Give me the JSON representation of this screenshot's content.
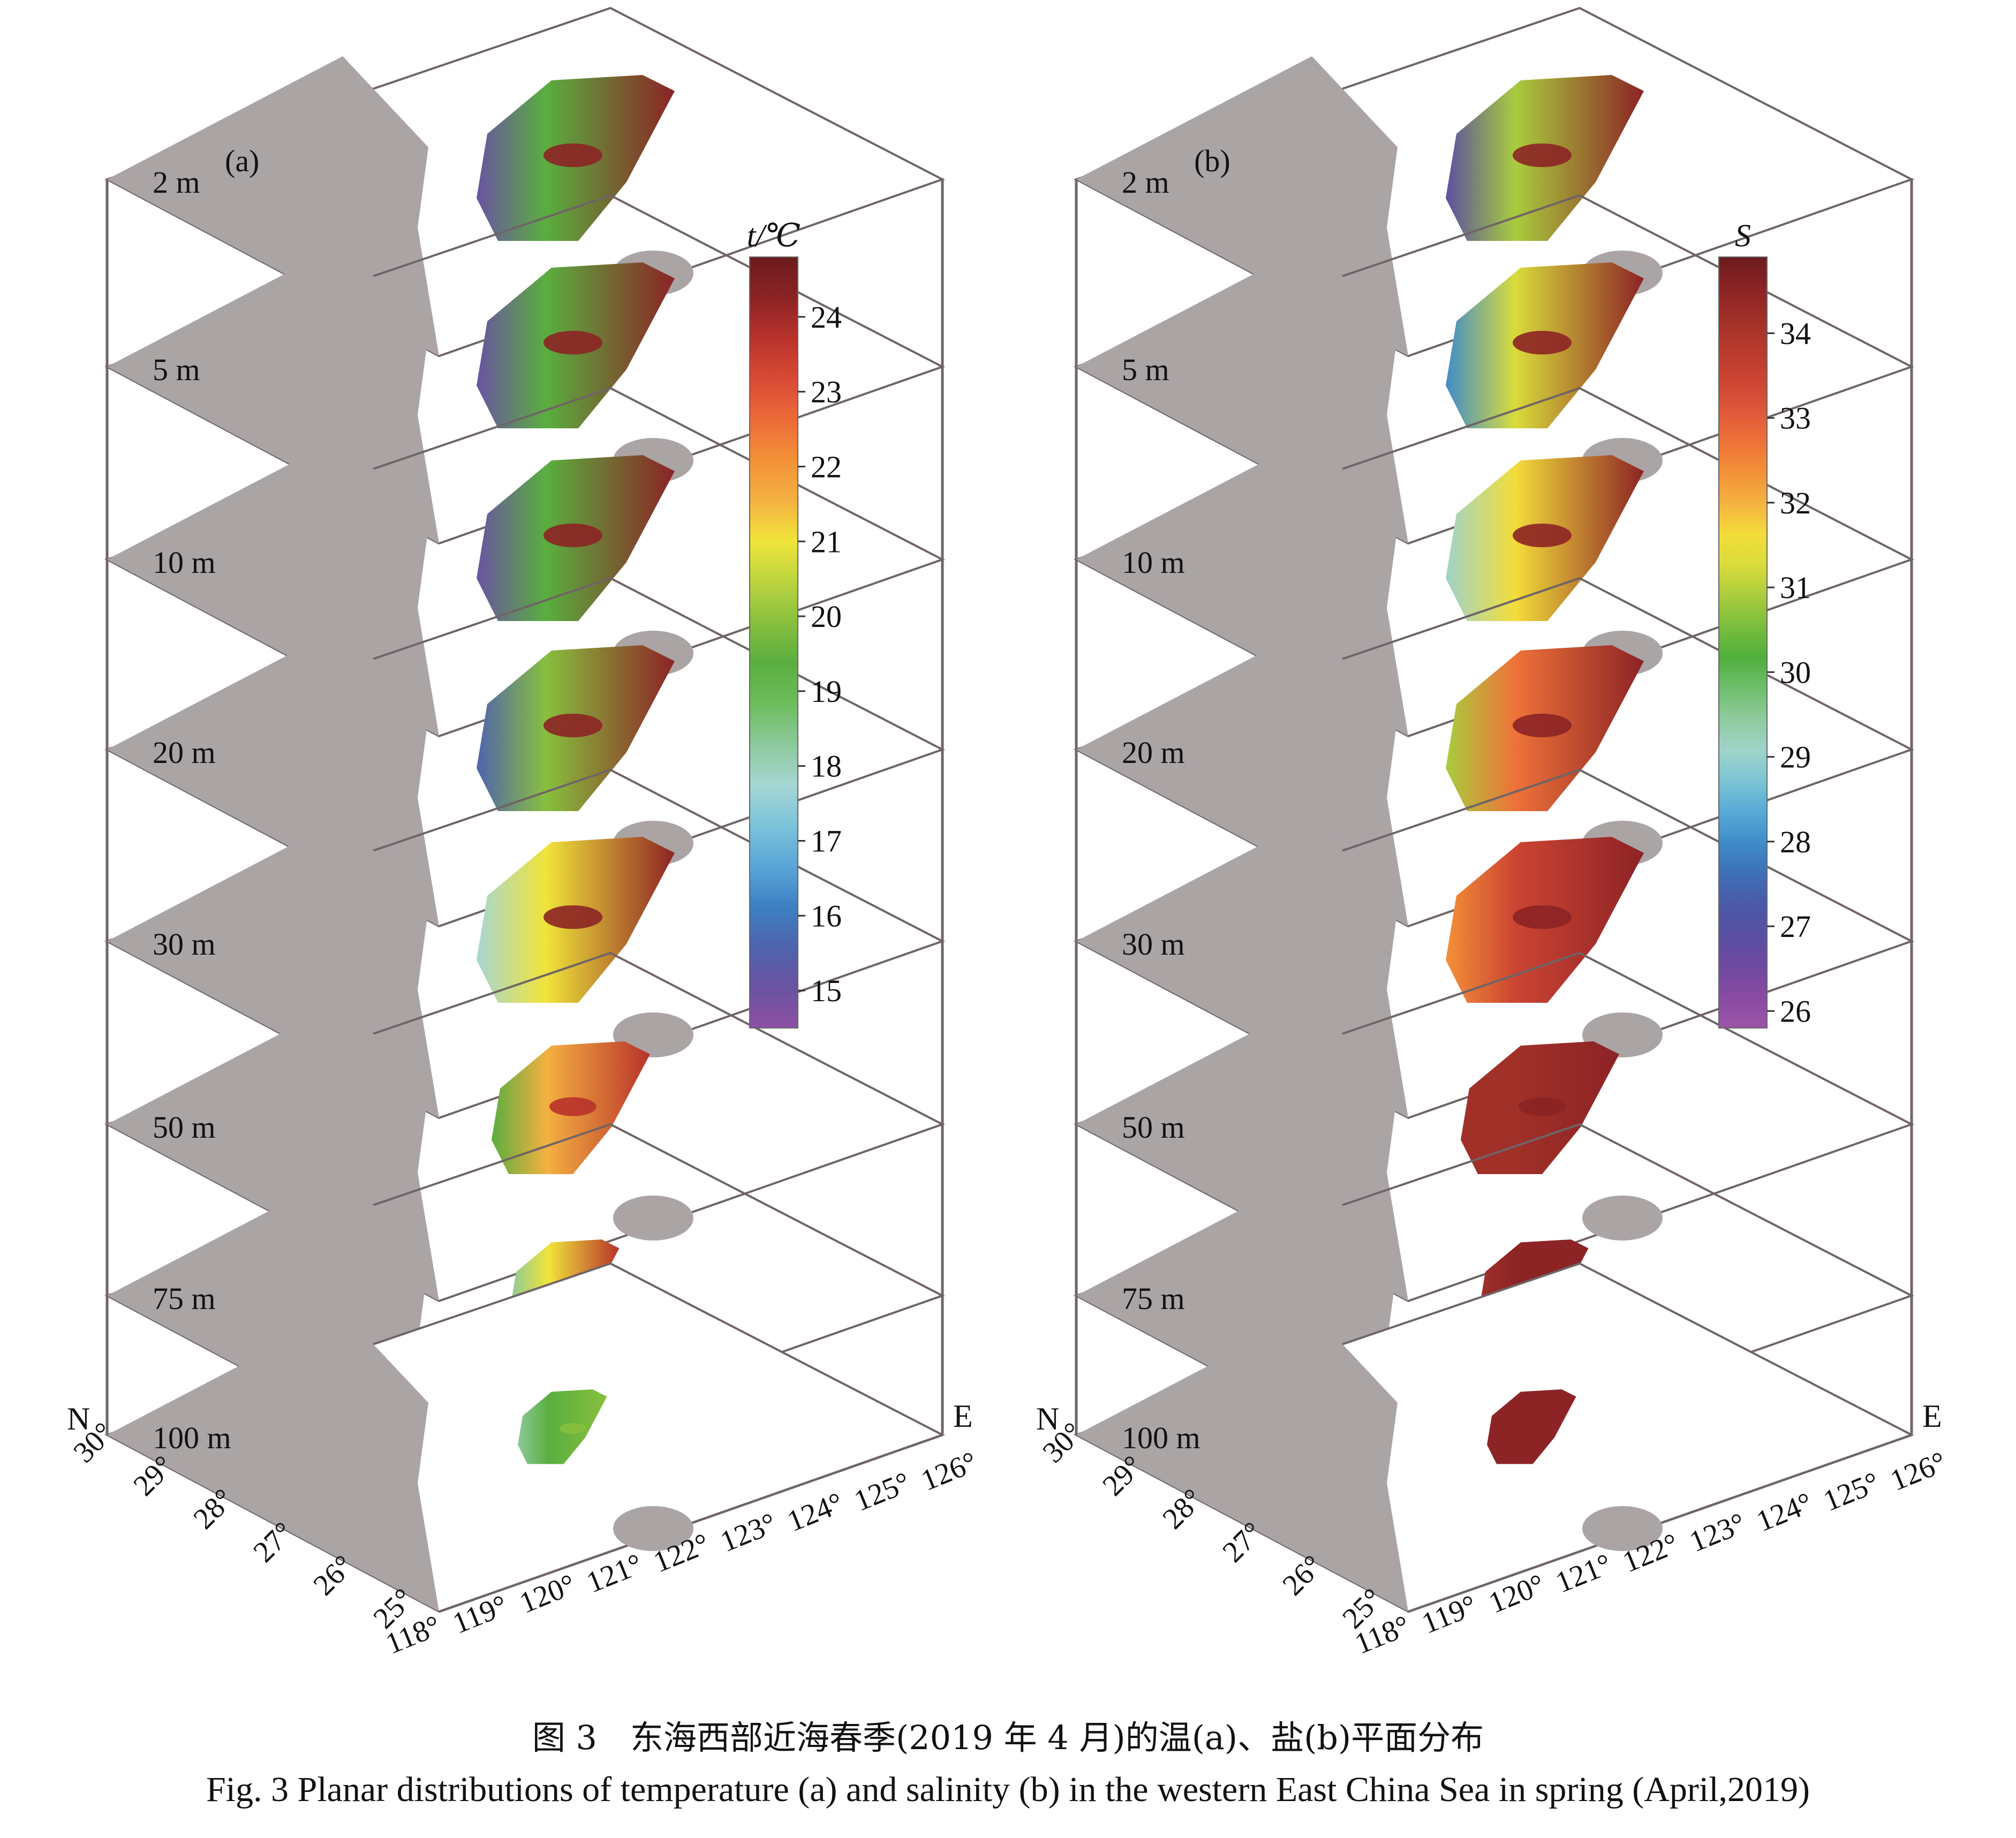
{
  "figure": {
    "caption_cn": "图 3　东海西部近海春季(2019 年 4 月)的温(a)、盐(b)平面分布",
    "caption_en": "Fig. 3  Planar distributions of temperature (a) and salinity (b) in the western East China Sea in spring (April,2019)"
  },
  "chart_data": [
    {
      "type": "heatmap",
      "panel": "(a)",
      "colorbar_title": "t/℃",
      "colorbar_ticks": [
        24,
        23,
        22,
        21,
        20,
        19,
        18,
        17,
        16,
        15
      ],
      "colorbar_range": [
        14.5,
        24.8
      ],
      "depth_labels": [
        "2 m",
        "5 m",
        "10 m",
        "20 m",
        "30 m",
        "50 m",
        "75 m",
        "100 m"
      ],
      "lon_ticks": [
        "118°",
        "119°",
        "120°",
        "121°",
        "122°",
        "123°",
        "124°",
        "125°",
        "126°"
      ],
      "lat_ticks": [
        "30°",
        "29°",
        "28°",
        "27°",
        "26°",
        "25°"
      ],
      "north_label": "N",
      "east_label": "E",
      "levels": [
        {
          "depth": "2 m",
          "coastal_min": 14.8,
          "shelf_max": 24.2
        },
        {
          "depth": "5 m",
          "coastal_min": 15.0,
          "shelf_max": 24.0
        },
        {
          "depth": "10 m",
          "coastal_min": 15.2,
          "shelf_max": 24.0
        },
        {
          "depth": "20 m",
          "coastal_min": 15.8,
          "shelf_max": 24.0
        },
        {
          "depth": "30 m",
          "coastal_min": 17.5,
          "shelf_max": 24.0
        },
        {
          "depth": "50 m",
          "coastal_min": 19.5,
          "shelf_max": 23.8
        },
        {
          "depth": "75 m",
          "coastal_min": 18.5,
          "shelf_max": 23.5
        },
        {
          "depth": "100 m",
          "coastal_min": 18.3,
          "shelf_max": 20.0
        }
      ]
    },
    {
      "type": "heatmap",
      "panel": "(b)",
      "colorbar_title": "S",
      "colorbar_ticks": [
        34,
        33,
        32,
        31,
        30,
        29,
        28,
        27,
        26
      ],
      "colorbar_range": [
        25.8,
        34.9
      ],
      "depth_labels": [
        "2 m",
        "5 m",
        "10 m",
        "20 m",
        "30 m",
        "50 m",
        "75 m",
        "100 m"
      ],
      "lon_ticks": [
        "118°",
        "119°",
        "120°",
        "121°",
        "122°",
        "123°",
        "124°",
        "125°",
        "126°"
      ],
      "lat_ticks": [
        "30°",
        "29°",
        "28°",
        "27°",
        "26°",
        "25°"
      ],
      "north_label": "N",
      "east_label": "E",
      "levels": [
        {
          "depth": "2 m",
          "coastal_min": 27.0,
          "shelf_max": 34.6
        },
        {
          "depth": "5 m",
          "coastal_min": 28.0,
          "shelf_max": 34.6
        },
        {
          "depth": "10 m",
          "coastal_min": 29.0,
          "shelf_max": 34.6
        },
        {
          "depth": "20 m",
          "coastal_min": 31.0,
          "shelf_max": 34.6
        },
        {
          "depth": "30 m",
          "coastal_min": 32.5,
          "shelf_max": 34.6
        },
        {
          "depth": "50 m",
          "coastal_min": 34.0,
          "shelf_max": 34.6
        },
        {
          "depth": "75 m",
          "coastal_min": 34.3,
          "shelf_max": 34.7
        },
        {
          "depth": "100 m",
          "coastal_min": 34.6,
          "shelf_max": 34.7
        }
      ]
    }
  ],
  "colors": {
    "land": "#aba4a5",
    "frame": "#6f6466",
    "temperature_palette": [
      "#8e4fa3",
      "#6a53a2",
      "#4f63ad",
      "#3d80c3",
      "#5aa6d8",
      "#7cc3da",
      "#a6d6d3",
      "#8cc99b",
      "#6dbd5c",
      "#5aae3f",
      "#88bf3e",
      "#bcd43f",
      "#f0e43a",
      "#f4b041",
      "#f39138",
      "#ec6a38",
      "#d84a35",
      "#b8322b",
      "#8c2325",
      "#6b1b1d"
    ],
    "salinity_palette": [
      "#9b55a8",
      "#8a4aa3",
      "#6f4aa1",
      "#5a4fa2",
      "#4a5aa8",
      "#3e6fb7",
      "#3f8cc9",
      "#57a9d7",
      "#7cc4d6",
      "#9fd3c9",
      "#8fcb9e",
      "#6fbf6e",
      "#4fae3c",
      "#79bd3d",
      "#a9cc3d",
      "#d9dc3b",
      "#f3dd3a",
      "#f4b340",
      "#f39138",
      "#ee7238",
      "#e0583a",
      "#cc4433",
      "#b83a2e",
      "#a03028",
      "#8c2325",
      "#6b1b1d"
    ]
  }
}
